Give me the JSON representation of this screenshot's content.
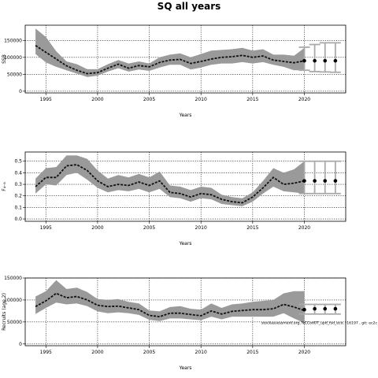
{
  "figure": {
    "title": "SQ all years"
  },
  "chart_data": [
    {
      "type": "line",
      "panel": "ssb",
      "title": "",
      "xlabel": "Years",
      "ylabel": "SSB",
      "xlim": [
        1993,
        2024
      ],
      "ylim": [
        -5000,
        195000
      ],
      "xticks": [
        1995,
        2000,
        2005,
        2010,
        2015,
        2020
      ],
      "yticks": [
        0,
        50000,
        100000,
        150000
      ],
      "grid": "dotted",
      "x": [
        1994,
        1995,
        1996,
        1997,
        1998,
        1999,
        2000,
        2001,
        2002,
        2003,
        2004,
        2005,
        2006,
        2007,
        2008,
        2009,
        2010,
        2011,
        2012,
        2013,
        2014,
        2015,
        2016,
        2017,
        2018,
        2019,
        2020
      ],
      "series": [
        {
          "role": "estimate",
          "style": "dashed",
          "values": [
            135000,
            115000,
            95000,
            75000,
            62000,
            52000,
            55000,
            68000,
            80000,
            68000,
            76000,
            72000,
            85000,
            92000,
            94000,
            82000,
            88000,
            95000,
            100000,
            102000,
            106000,
            100000,
            104000,
            92000,
            88000,
            84000,
            90000
          ]
        },
        {
          "role": "upper",
          "values": [
            185000,
            160000,
            118000,
            88000,
            80000,
            65000,
            65000,
            80000,
            92000,
            82000,
            88000,
            82000,
            100000,
            108000,
            112000,
            100000,
            110000,
            120000,
            122000,
            124000,
            128000,
            120000,
            124000,
            108000,
            108000,
            105000,
            128000
          ]
        },
        {
          "role": "lower",
          "values": [
            110000,
            85000,
            72000,
            62000,
            52000,
            42000,
            46000,
            58000,
            68000,
            58000,
            64000,
            60000,
            70000,
            78000,
            78000,
            64000,
            70000,
            78000,
            82000,
            82000,
            86000,
            82000,
            86000,
            78000,
            72000,
            62000,
            62000
          ]
        }
      ],
      "forecast": {
        "x": [
          2020,
          2021,
          2022,
          2023
        ],
        "values": [
          90000,
          90000,
          90000,
          90000
        ],
        "upper": [
          130000,
          138000,
          143000,
          143000
        ],
        "lower": [
          62000,
          58000,
          57000,
          56000
        ]
      }
    },
    {
      "type": "line",
      "panel": "fbar",
      "title": "",
      "xlabel": "Years",
      "ylabel": "F₄₋₈",
      "xlim": [
        1993,
        2024
      ],
      "ylim": [
        -0.02,
        0.58
      ],
      "xticks": [
        1995,
        2000,
        2005,
        2010,
        2015,
        2020
      ],
      "yticks": [
        0,
        0.1,
        0.2,
        0.3,
        0.4,
        0.5
      ],
      "ytick_labels": [
        "0.0",
        "0.1",
        "0.2",
        "0.3",
        "0.4",
        "0.5"
      ],
      "grid": "dotted",
      "x": [
        1994,
        1995,
        1996,
        1997,
        1998,
        1999,
        2000,
        2001,
        2002,
        2003,
        2004,
        2005,
        2006,
        2007,
        2008,
        2009,
        2010,
        2011,
        2012,
        2013,
        2014,
        2015,
        2016,
        2017,
        2018,
        2019,
        2020
      ],
      "series": [
        {
          "role": "estimate",
          "style": "dashed",
          "values": [
            0.28,
            0.36,
            0.36,
            0.46,
            0.47,
            0.42,
            0.33,
            0.28,
            0.3,
            0.29,
            0.32,
            0.29,
            0.33,
            0.23,
            0.22,
            0.19,
            0.22,
            0.21,
            0.17,
            0.15,
            0.14,
            0.19,
            0.27,
            0.36,
            0.3,
            0.31,
            0.33
          ]
        },
        {
          "role": "upper",
          "values": [
            0.35,
            0.44,
            0.45,
            0.55,
            0.55,
            0.52,
            0.42,
            0.35,
            0.38,
            0.36,
            0.39,
            0.36,
            0.41,
            0.29,
            0.28,
            0.25,
            0.28,
            0.27,
            0.21,
            0.19,
            0.18,
            0.23,
            0.33,
            0.44,
            0.4,
            0.43,
            0.5
          ]
        },
        {
          "role": "lower",
          "values": [
            0.22,
            0.3,
            0.29,
            0.38,
            0.4,
            0.34,
            0.27,
            0.23,
            0.25,
            0.24,
            0.26,
            0.23,
            0.26,
            0.19,
            0.18,
            0.15,
            0.18,
            0.17,
            0.13,
            0.12,
            0.11,
            0.15,
            0.22,
            0.28,
            0.24,
            0.23,
            0.22
          ]
        }
      ],
      "forecast": {
        "x": [
          2020,
          2021,
          2022,
          2023
        ],
        "values": [
          0.33,
          0.33,
          0.33,
          0.33
        ],
        "upper": [
          0.5,
          0.5,
          0.5,
          0.5
        ],
        "lower": [
          0.22,
          0.22,
          0.22,
          0.22
        ]
      }
    },
    {
      "type": "line",
      "panel": "recruits",
      "title": "",
      "xlabel": "Years",
      "ylabel": "Recruits (age 2)",
      "xlim": [
        1993,
        2024
      ],
      "ylim": [
        -4000,
        150000
      ],
      "xticks": [
        1995,
        2000,
        2005,
        2010,
        2015,
        2020
      ],
      "yticks": [
        0,
        50000,
        100000,
        150000
      ],
      "grid": "dotted",
      "x": [
        1994,
        1995,
        1996,
        1997,
        1998,
        1999,
        2000,
        2001,
        2002,
        2003,
        2004,
        2005,
        2006,
        2007,
        2008,
        2009,
        2010,
        2011,
        2012,
        2013,
        2014,
        2015,
        2016,
        2017,
        2018,
        2019,
        2020
      ],
      "series": [
        {
          "role": "estimate",
          "style": "dashed",
          "values": [
            85000,
            98000,
            115000,
            105000,
            108000,
            100000,
            88000,
            85000,
            86000,
            82000,
            78000,
            65000,
            62000,
            70000,
            70000,
            67000,
            64000,
            75000,
            68000,
            74000,
            76000,
            78000,
            78000,
            80000,
            90000,
            84000,
            76000
          ]
        },
        {
          "role": "upper",
          "values": [
            108000,
            120000,
            145000,
            125000,
            128000,
            118000,
            102000,
            100000,
            102000,
            96000,
            92000,
            76000,
            74000,
            84000,
            86000,
            80000,
            78000,
            92000,
            82000,
            90000,
            92000,
            96000,
            98000,
            100000,
            115000,
            120000,
            120000
          ]
        },
        {
          "role": "lower",
          "values": [
            68000,
            82000,
            94000,
            90000,
            92000,
            86000,
            74000,
            70000,
            72000,
            70000,
            66000,
            55000,
            52000,
            58000,
            58000,
            56000,
            54000,
            62000,
            56000,
            62000,
            62000,
            62000,
            62000,
            62000,
            70000,
            58000,
            48000
          ]
        }
      ],
      "forecast": {
        "x": [
          2020,
          2021,
          2022,
          2023
        ],
        "values": [
          78000,
          80000,
          80000,
          80000
        ],
        "upper": [
          90000,
          90000,
          90000,
          90000
        ],
        "lower": [
          68000,
          68000,
          68000,
          68000
        ]
      },
      "annotation": "stockassessment.org, NCCod07_upd_fsd_eco, r16197 , git: ec2c"
    }
  ]
}
